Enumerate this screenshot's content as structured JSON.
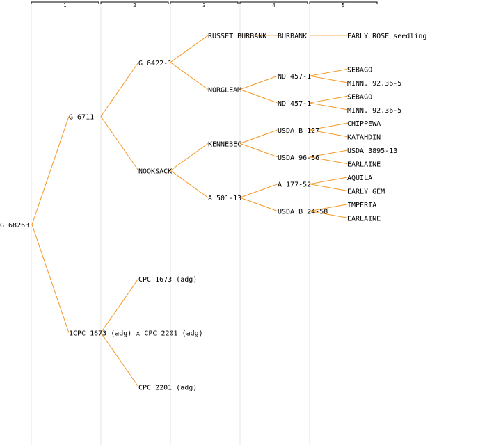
{
  "colors": {
    "edge": "#f7941d",
    "gridline": "#e6e6e6",
    "text": "#000000"
  },
  "generations": [
    "1",
    "2",
    "3",
    "4",
    "5"
  ],
  "tree": {
    "label": "G 68263",
    "children": [
      {
        "label": "G 6711",
        "children": [
          {
            "label": "G 6422-1",
            "children": [
              {
                "label": "RUSSET BURBANK",
                "children": [
                  {
                    "label": "BURBANK",
                    "children": [
                      {
                        "label": "EARLY ROSE seedling"
                      }
                    ]
                  }
                ]
              },
              {
                "label": "NORGLEAM",
                "children": [
                  {
                    "label": "ND 457-1",
                    "children": [
                      {
                        "label": "SEBAGO"
                      },
                      {
                        "label": "MINN. 92.36-5"
                      }
                    ]
                  },
                  {
                    "label": "ND 457-1",
                    "children": [
                      {
                        "label": "SEBAGO"
                      },
                      {
                        "label": "MINN. 92.36-5"
                      }
                    ]
                  }
                ]
              }
            ]
          },
          {
            "label": "NOOKSACK",
            "children": [
              {
                "label": "KENNEBEC",
                "children": [
                  {
                    "label": "USDA B 127",
                    "children": [
                      {
                        "label": "CHIPPEWA"
                      },
                      {
                        "label": "KATAHDIN"
                      }
                    ]
                  },
                  {
                    "label": "USDA 96-56",
                    "children": [
                      {
                        "label": "USDA 3895-13"
                      },
                      {
                        "label": "EARLAINE"
                      }
                    ]
                  }
                ]
              },
              {
                "label": "A 501-13",
                "children": [
                  {
                    "label": "A 177-52",
                    "children": [
                      {
                        "label": "AQUILA"
                      },
                      {
                        "label": "EARLY GEM"
                      }
                    ]
                  },
                  {
                    "label": "USDA B 24-58",
                    "children": [
                      {
                        "label": "IMPERIA"
                      },
                      {
                        "label": "EARLAINE"
                      }
                    ]
                  }
                ]
              }
            ]
          }
        ]
      },
      {
        "label": "1CPC 1673 (adg) x CPC 2201 (adg)",
        "children": [
          {
            "label": "CPC 1673 (adg)"
          },
          {
            "label": "CPC 2201 (adg)"
          }
        ]
      }
    ]
  }
}
